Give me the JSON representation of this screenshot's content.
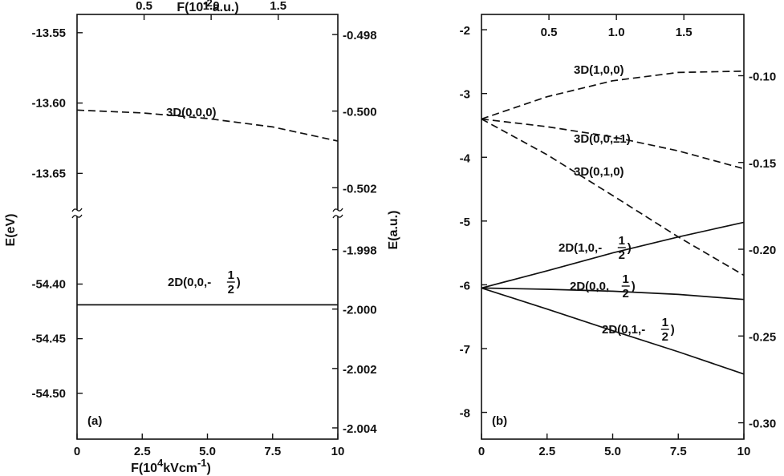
{
  "chart_data": [
    {
      "type": "line",
      "panel_label": "(a)",
      "xlabel": "F(10",
      "xlabel_sup": "4",
      "xlabel_rest": "kVcm",
      "xlabel_sup2": "-1",
      "xlabel_close": ")",
      "x_ticks": [
        "0",
        "2.5",
        "5.0",
        "7.5",
        "10"
      ],
      "top_xlabel": "F(10",
      "top_xlabel_sup": "-2",
      "top_xlabel_rest": "a.u.)",
      "top_ticks": [
        "0.5",
        "1.0",
        "1.5"
      ],
      "ylabel_left": "E(eV)",
      "ylabel_right": "E(a.u.)",
      "xlim": [
        0,
        10
      ],
      "axis_break": true,
      "segments": [
        {
          "ylim": [
            -13.676,
            -13.537
          ],
          "left_ticks": [
            "-13.55",
            "-13.60",
            "-13.65"
          ],
          "left_values": [
            -13.55,
            -13.6,
            -13.65
          ],
          "right_ticks": [
            "-0.498",
            "-0.500",
            "-0.502"
          ],
          "right_values": [
            -13.5513,
            -13.6057,
            -13.6602
          ]
        },
        {
          "ylim": [
            -54.542,
            -54.338
          ],
          "left_ticks": [
            "-54.40",
            "-54.45",
            "-54.50"
          ],
          "left_values": [
            -54.4,
            -54.45,
            -54.5
          ],
          "right_ticks": [
            "-1.998",
            "-2.000",
            "-2.002",
            "-2.004"
          ],
          "right_values": [
            -54.3685,
            -54.4229,
            -54.4773,
            -54.5317
          ]
        }
      ],
      "series": [
        {
          "label": "3D(0,0,0)",
          "style": "dashed",
          "segment": 0,
          "x": [
            0,
            2.5,
            5.0,
            7.5,
            10
          ],
          "y": [
            -13.605,
            -13.607,
            -13.611,
            -13.617,
            -13.627
          ]
        },
        {
          "label": "2D(0,0,-½)",
          "style": "solid",
          "segment": 1,
          "x": [
            0,
            5.0,
            10
          ],
          "y": [
            -54.419,
            -54.419,
            -54.419
          ]
        }
      ]
    },
    {
      "type": "line",
      "panel_label": "(b)",
      "x_ticks": [
        "0",
        "2.5",
        "5.0",
        "7.5",
        "10"
      ],
      "top_ticks": [
        "0.5",
        "1.0",
        "1.5"
      ],
      "left_ticks": [
        "-2",
        "-3",
        "-4",
        "-5",
        "-6",
        "-7",
        "-8"
      ],
      "right_ticks": [
        "-0.10",
        "-0.15",
        "-0.20",
        "-0.25",
        "-0.30"
      ],
      "xlim": [
        0,
        10
      ],
      "ylim": [
        -8.42,
        -1.76
      ],
      "series": [
        {
          "label": "3D(1,0,0)",
          "style": "dashed",
          "x": [
            0,
            2.5,
            5.0,
            7.5,
            10
          ],
          "y": [
            -3.4,
            -3.05,
            -2.8,
            -2.67,
            -2.65
          ]
        },
        {
          "label": "3D(0,0,±1)",
          "style": "dashed",
          "x": [
            0,
            2.5,
            5.0,
            7.5,
            10
          ],
          "y": [
            -3.4,
            -3.52,
            -3.68,
            -3.9,
            -4.18
          ]
        },
        {
          "label": "3D(0,1,0)",
          "style": "dashed",
          "x": [
            0,
            2.5,
            5.0,
            7.5,
            10
          ],
          "y": [
            -3.4,
            -3.96,
            -4.6,
            -5.25,
            -5.85
          ]
        },
        {
          "label": "2D(1,0,-½)",
          "style": "solid",
          "x": [
            0,
            2.5,
            5.0,
            7.5,
            10
          ],
          "y": [
            -6.05,
            -5.78,
            -5.5,
            -5.25,
            -5.02
          ]
        },
        {
          "label": "2D(0,0,½)",
          "style": "solid",
          "x": [
            0,
            2.5,
            5.0,
            7.5,
            10
          ],
          "y": [
            -6.05,
            -6.07,
            -6.1,
            -6.15,
            -6.23
          ]
        },
        {
          "label": "2D(0,1,-½)",
          "style": "solid",
          "x": [
            0,
            2.5,
            5.0,
            7.5,
            10
          ],
          "y": [
            -6.05,
            -6.38,
            -6.72,
            -7.05,
            -7.4
          ]
        }
      ]
    }
  ]
}
